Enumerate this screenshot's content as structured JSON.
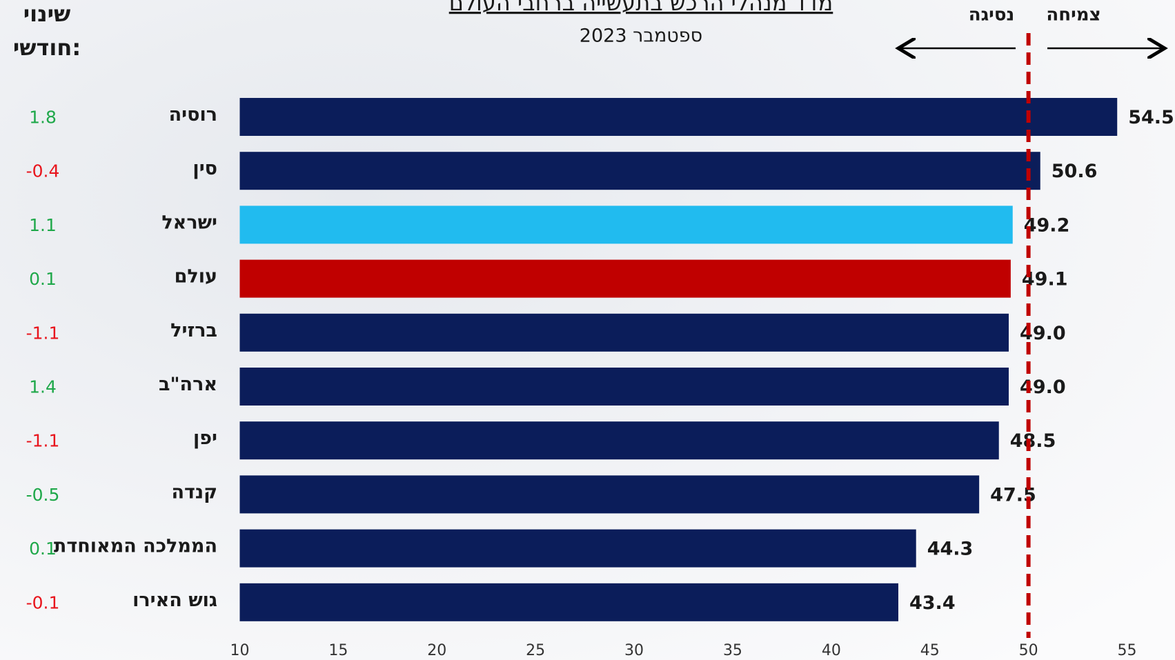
{
  "chart_data": {
    "type": "bar",
    "orientation": "horizontal",
    "title": "מדד מנהלי הרכש בתעשייה ברחבי העולם",
    "subtitle": "ספטמבר 2023",
    "change_header": [
      "שינוי",
      "חודשי:"
    ],
    "threshold_labels": {
      "below": "נסיגה",
      "above": "צמיחה"
    },
    "threshold": 50,
    "threshold_color": "#c00000",
    "categories": [
      "רוסיה",
      "סין",
      "ישראל",
      "עולם",
      "ברזיל",
      "ארה\"ב",
      "יפן",
      "קנדה",
      "הממלכה המאוחדת",
      "גוש האירו"
    ],
    "values": [
      54.5,
      50.6,
      49.2,
      49.1,
      49.0,
      49.0,
      48.5,
      47.5,
      44.3,
      43.4
    ],
    "value_labels": [
      "54.5",
      "50.6",
      "49.2",
      "49.1",
      "49.0",
      "49.0",
      "48.5",
      "47.5",
      "44.3",
      "43.4"
    ],
    "colors": [
      "#0b1d5a",
      "#0b1d5a",
      "#21bbef",
      "#c00000",
      "#0b1d5a",
      "#0b1d5a",
      "#0b1d5a",
      "#0b1d5a",
      "#0b1d5a",
      "#0b1d5a"
    ],
    "changes": [
      1.8,
      -0.4,
      1.1,
      0.1,
      -1.1,
      1.4,
      -1.1,
      -0.5,
      0.1,
      -0.1
    ],
    "change_colors": [
      "#1fa84a",
      "#e8141c",
      "#1fa84a",
      "#1fa84a",
      "#e8141c",
      "#1fa84a",
      "#e8141c",
      "#1fa84a",
      "#1fa84a",
      "#e8141c"
    ],
    "xlim": [
      10,
      55
    ],
    "xticks": [
      10,
      15,
      20,
      25,
      30,
      35,
      40,
      45,
      50,
      55
    ]
  }
}
